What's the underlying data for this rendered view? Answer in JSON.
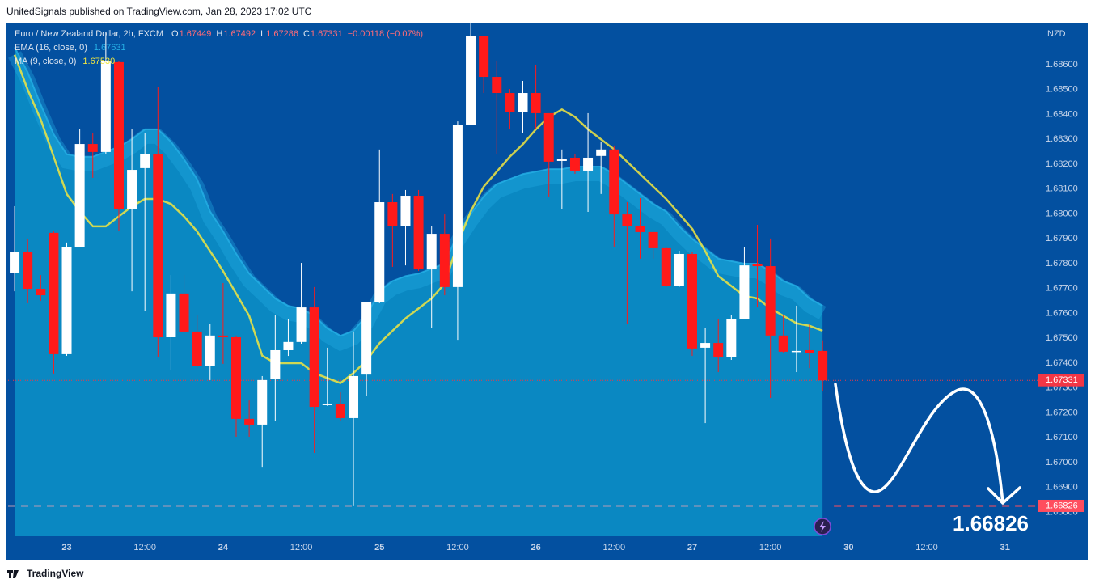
{
  "header": {
    "text": "UnitedSignals published on TradingView.com, Jan 28, 2023 17:02 UTC"
  },
  "footer": {
    "brand": "TradingView"
  },
  "chart_data": {
    "type": "candlestick",
    "title": "Euro / New Zealand Dollar, 2h, FXCM",
    "ohlc_labels": [
      "O",
      "H",
      "L",
      "C"
    ],
    "change": "−0.00118 (−0.07%)",
    "y_unit": "NZD",
    "up_color": "#ffffff",
    "down_color": "#ff1a1a",
    "grid": false,
    "open": [
      1.67764,
      1.67846,
      1.67699,
      1.67924,
      1.67436,
      1.67868,
      1.68281,
      1.68249,
      1.6861,
      1.68021,
      1.68184,
      1.68242,
      1.67504,
      1.6768,
      1.67527,
      1.67387,
      1.67511,
      1.67504,
      1.67176,
      1.67153,
      1.67338,
      1.67452,
      1.67485,
      1.67624,
      1.67231,
      1.67237,
      1.67179,
      1.67354,
      1.67644,
      1.68047,
      1.6795,
      1.68073,
      1.67777,
      1.6792,
      1.67706,
      1.68356,
      1.68714,
      1.68551,
      1.68486,
      1.68411,
      1.68486,
      1.68405,
      1.68213,
      1.68226,
      1.68174,
      1.68233,
      1.68259,
      1.67998,
      1.6795,
      1.67927,
      1.67862,
      1.67709,
      1.67839,
      1.67462,
      1.67481,
      1.67423,
      1.67576,
      1.67797,
      1.6779,
      1.67511,
      1.67446,
      1.67452,
      1.67449
    ],
    "high": [
      1.68031,
      1.67898,
      1.67754,
      1.67933,
      1.67885,
      1.6834,
      1.68324,
      1.6873,
      1.68616,
      1.6834,
      1.68324,
      1.68509,
      1.67754,
      1.67754,
      1.67592,
      1.67559,
      1.67722,
      1.67511,
      1.6725,
      1.67348,
      1.67592,
      1.67576,
      1.67803,
      1.67706,
      1.67462,
      1.67283,
      1.67527,
      1.67647,
      1.68259,
      1.6808,
      1.68096,
      1.68096,
      1.6795,
      1.67998,
      1.68372,
      1.68769,
      1.68714,
      1.68616,
      1.68502,
      1.68535,
      1.686,
      1.68405,
      1.68259,
      1.68242,
      1.68405,
      1.68291,
      1.68275,
      1.68047,
      1.68063,
      1.67933,
      1.67868,
      1.67852,
      1.67846,
      1.67543,
      1.67576,
      1.67592,
      1.67868,
      1.67956,
      1.67901,
      1.67592,
      1.67631,
      1.67559,
      1.67492
    ],
    "low": [
      1.67689,
      1.67641,
      1.6765,
      1.67358,
      1.67429,
      1.67868,
      1.68145,
      1.68242,
      1.67933,
      1.67689,
      1.67608,
      1.67423,
      1.67371,
      1.67511,
      1.6738,
      1.67332,
      1.67397,
      1.67104,
      1.67104,
      1.6698,
      1.67169,
      1.67429,
      1.67478,
      1.67039,
      1.67228,
      1.67169,
      1.66828,
      1.67267,
      1.67641,
      1.67787,
      1.67793,
      1.67771,
      1.67543,
      1.67673,
      1.67494,
      1.68356,
      1.68486,
      1.68242,
      1.6834,
      1.68324,
      1.6834,
      1.6807,
      1.68021,
      1.68161,
      1.68008,
      1.6808,
      1.67868,
      1.67559,
      1.6782,
      1.6782,
      1.67706,
      1.67706,
      1.67429,
      1.67159,
      1.67364,
      1.67413,
      1.67576,
      1.67624,
      1.6726,
      1.67439,
      1.67364,
      1.6738,
      1.67286
    ],
    "close": [
      1.67846,
      1.67699,
      1.67673,
      1.67436,
      1.67868,
      1.68281,
      1.68249,
      1.68616,
      1.68021,
      1.68177,
      1.68242,
      1.67504,
      1.6768,
      1.67527,
      1.67387,
      1.67511,
      1.67504,
      1.67176,
      1.67153,
      1.67332,
      1.67452,
      1.67485,
      1.67624,
      1.67224,
      1.67237,
      1.67179,
      1.67348,
      1.67644,
      1.68047,
      1.6795,
      1.68073,
      1.67777,
      1.6792,
      1.67706,
      1.68356,
      1.68714,
      1.68551,
      1.68486,
      1.68411,
      1.68486,
      1.68405,
      1.6821,
      1.6822,
      1.68174,
      1.68226,
      1.68259,
      1.67998,
      1.6795,
      1.67927,
      1.67862,
      1.67709,
      1.67839,
      1.67459,
      1.67481,
      1.67423,
      1.67576,
      1.67793,
      1.6779,
      1.67511,
      1.67446,
      1.67449,
      1.67442,
      1.67331
    ],
    "series": [
      {
        "name": "EMA (16, close, 0)",
        "color": "#26b0e6",
        "area_color": "#0a88c2",
        "legend_value": "1.67631",
        "values": [
          1.6867,
          1.6857,
          1.6844,
          1.6832,
          1.6824,
          1.6823,
          1.6823,
          1.6825,
          1.6827,
          1.683,
          1.6834,
          1.6834,
          1.6829,
          1.6822,
          1.6814,
          1.6801,
          1.6793,
          1.6784,
          1.6776,
          1.6771,
          1.6766,
          1.6763,
          1.6762,
          1.6759,
          1.6754,
          1.6751,
          1.6753,
          1.6759,
          1.6769,
          1.6773,
          1.6775,
          1.6776,
          1.6778,
          1.678,
          1.6792,
          1.68,
          1.6807,
          1.6812,
          1.6814,
          1.6816,
          1.6817,
          1.6818,
          1.6818,
          1.6819,
          1.6819,
          1.6819,
          1.6816,
          1.6812,
          1.6808,
          1.6804,
          1.6801,
          1.6795,
          1.679,
          1.6786,
          1.6782,
          1.6781,
          1.678,
          1.678,
          1.6777,
          1.6773,
          1.6771,
          1.6766,
          1.67631
        ]
      },
      {
        "name": "MA (9, close, 0)",
        "color": "#f2e640",
        "legend_value": "1.67530",
        "values": [
          1.6864,
          1.685,
          1.6838,
          1.6823,
          1.6808,
          1.6801,
          1.6795,
          1.6795,
          1.6799,
          1.6803,
          1.6806,
          1.6806,
          1.6804,
          1.6799,
          1.6793,
          1.6785,
          1.6777,
          1.6768,
          1.6759,
          1.6743,
          1.674,
          1.674,
          1.674,
          1.6736,
          1.6734,
          1.6732,
          1.6736,
          1.6741,
          1.6748,
          1.6753,
          1.6758,
          1.6762,
          1.6766,
          1.6772,
          1.6788,
          1.6801,
          1.6811,
          1.6817,
          1.6823,
          1.6828,
          1.6834,
          1.6839,
          1.6842,
          1.6839,
          1.6834,
          1.683,
          1.6826,
          1.6821,
          1.6816,
          1.6811,
          1.6806,
          1.68,
          1.6794,
          1.6785,
          1.6775,
          1.6771,
          1.6767,
          1.6766,
          1.6762,
          1.6759,
          1.6756,
          1.6755,
          1.6753
        ]
      }
    ],
    "target": {
      "value": 1.66826,
      "color": "#ff4d5e"
    },
    "last_price_color": "#f23645",
    "xlim": [
      -0.5,
      78.5
    ],
    "xticks": [
      {
        "value": 4,
        "label": "23"
      },
      {
        "value": 10,
        "label": "12:00"
      },
      {
        "value": 16,
        "label": "24"
      },
      {
        "value": 22,
        "label": "12:00"
      },
      {
        "value": 28,
        "label": "25"
      },
      {
        "value": 34,
        "label": "12:00"
      },
      {
        "value": 40,
        "label": "26"
      },
      {
        "value": 46,
        "label": "12:00"
      },
      {
        "value": 52,
        "label": "27"
      },
      {
        "value": 58,
        "label": "12:00"
      },
      {
        "value": 64,
        "label": "30"
      },
      {
        "value": 70,
        "label": "12:00"
      },
      {
        "value": 76,
        "label": "31"
      }
    ],
    "ylim": [
      1.66704,
      1.68769
    ],
    "yticks": [
      {
        "value": 1.686,
        "label": "1.68600"
      },
      {
        "value": 1.685,
        "label": "1.68500"
      },
      {
        "value": 1.684,
        "label": "1.68400"
      },
      {
        "value": 1.683,
        "label": "1.68300"
      },
      {
        "value": 1.682,
        "label": "1.68200"
      },
      {
        "value": 1.681,
        "label": "1.68100"
      },
      {
        "value": 1.68,
        "label": "1.68000"
      },
      {
        "value": 1.679,
        "label": "1.67900"
      },
      {
        "value": 1.678,
        "label": "1.67800"
      },
      {
        "value": 1.677,
        "label": "1.67700"
      },
      {
        "value": 1.676,
        "label": "1.67600"
      },
      {
        "value": 1.675,
        "label": "1.67500"
      },
      {
        "value": 1.674,
        "label": "1.67400"
      },
      {
        "value": 1.673,
        "label": "1.67300"
      },
      {
        "value": 1.672,
        "label": "1.67200"
      },
      {
        "value": 1.671,
        "label": "1.67100"
      },
      {
        "value": 1.67,
        "label": "1.67000"
      },
      {
        "value": 1.669,
        "label": "1.66900"
      },
      {
        "value": 1.668,
        "label": "1.66800"
      }
    ]
  }
}
